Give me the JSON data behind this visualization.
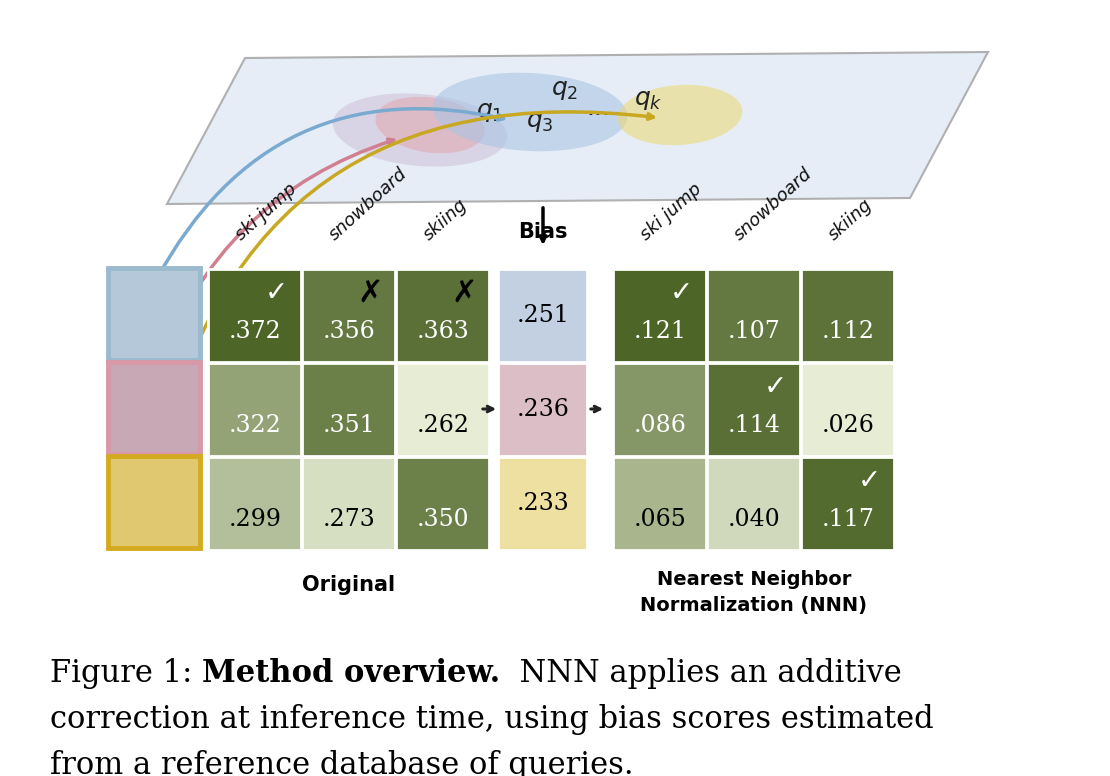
{
  "orig_values": [
    [
      0.372,
      0.356,
      0.363
    ],
    [
      0.322,
      0.351,
      0.262
    ],
    [
      0.299,
      0.273,
      0.35
    ]
  ],
  "bias_values": [
    0.251,
    0.236,
    0.233
  ],
  "nnn_values": [
    [
      0.121,
      0.107,
      0.112
    ],
    [
      0.086,
      0.114,
      0.026
    ],
    [
      0.065,
      0.04,
      0.117
    ]
  ],
  "orig_correct": [
    [
      true,
      false,
      false
    ],
    [
      false,
      false,
      false
    ],
    [
      false,
      false,
      false
    ]
  ],
  "orig_cross": [
    [
      false,
      true,
      true
    ],
    [
      false,
      false,
      false
    ],
    [
      false,
      false,
      false
    ]
  ],
  "nnn_correct": [
    [
      true,
      false,
      false
    ],
    [
      false,
      true,
      false
    ],
    [
      false,
      false,
      true
    ]
  ],
  "col_labels": [
    "ski jump",
    "snowboard",
    "skiing"
  ],
  "orig_label": "Original",
  "nnn_label_line1": "Nearest Neighbor",
  "nnn_label_line2": "Normalization (NNN)",
  "bias_label": "Bias",
  "bias_colors": [
    "#C2D0E2",
    "#DCBFC6",
    "#EDE0A0"
  ],
  "img_border_colors": [
    "#9ABACE",
    "#D898A8",
    "#D4AA20"
  ],
  "img_bg_colors": [
    "#B5C8DA",
    "#C8A8B5",
    "#DFC870"
  ],
  "dark_green": "#4E6528",
  "light_green": "#E6EDD4",
  "caption_fig": "Figure 1: ",
  "caption_bold": "Method overview.",
  "caption_rest": "  NNN applies an additive",
  "caption_line2": "correction at inference time, using bias scores estimated",
  "caption_line3": "from a reference database of queries."
}
